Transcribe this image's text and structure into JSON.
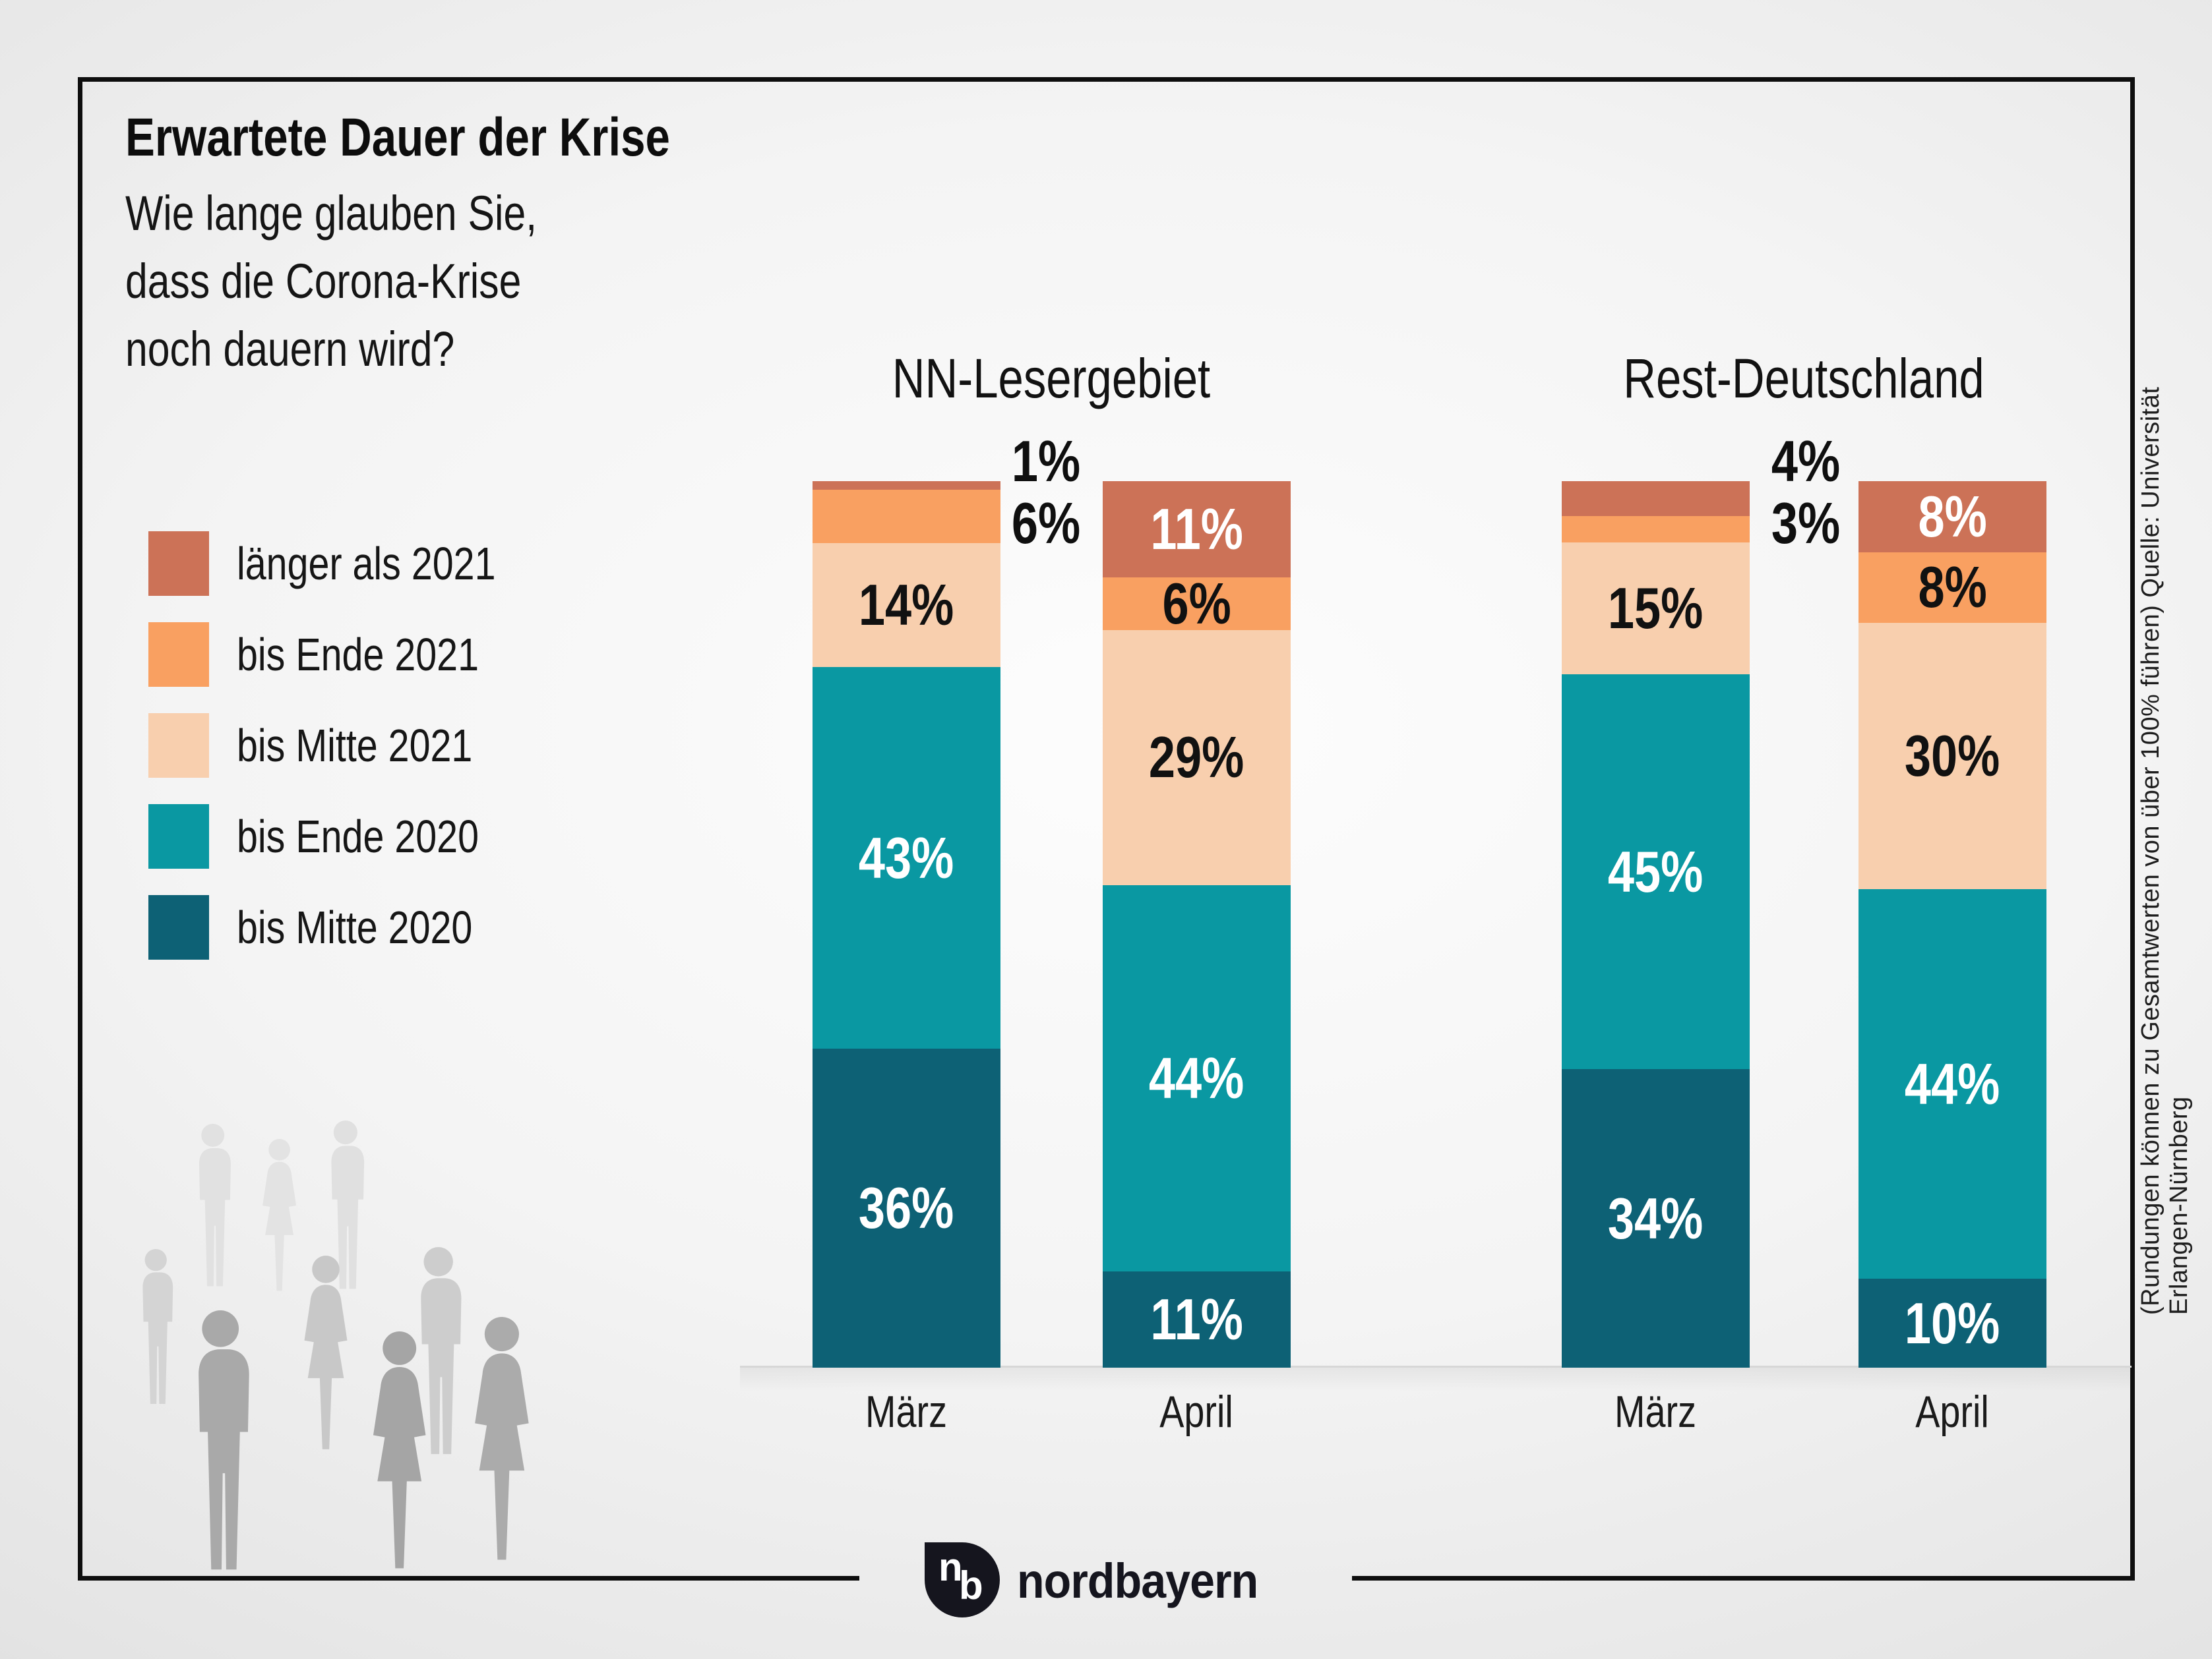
{
  "title": "Erwartete Dauer der Krise",
  "subtitle_lines": [
    "Wie lange glauben Sie,",
    "dass die Corona-Krise",
    "noch dauern wird?"
  ],
  "legend": {
    "items": [
      {
        "label": "länger als 2021"
      },
      {
        "label": "bis Ende 2021"
      },
      {
        "label": "bis Mitte 2021"
      },
      {
        "label": "bis Ende 2020"
      },
      {
        "label": "bis Mitte 2020"
      }
    ]
  },
  "chart_data": {
    "type": "bar",
    "stacked": true,
    "unit": "%",
    "ylim": [
      0,
      100
    ],
    "legend_position": "left",
    "categories_top_to_bottom": [
      "länger als 2021",
      "bis Ende 2021",
      "bis Mitte 2021",
      "bis Ende 2020",
      "bis Mitte 2020"
    ],
    "colors": [
      "#cc7257",
      "#f9a061",
      "#f8cfae",
      "#0a98a2",
      "#0d6175"
    ],
    "groups": [
      {
        "name": "NN-Lesergebiet",
        "bars": [
          {
            "month": "März",
            "segments": [
              {
                "category": "länger als 2021",
                "value": 1,
                "label": "1%",
                "label_pos": "out",
                "label_color": "#111111"
              },
              {
                "category": "bis Ende 2021",
                "value": 6,
                "label": "6%",
                "label_pos": "out",
                "label_color": "#111111"
              },
              {
                "category": "bis Mitte 2021",
                "value": 14,
                "label": "14%",
                "label_pos": "in",
                "label_color": "#111111"
              },
              {
                "category": "bis Ende 2020",
                "value": 43,
                "label": "43%",
                "label_pos": "in",
                "label_color": "#ffffff"
              },
              {
                "category": "bis Mitte 2020",
                "value": 36,
                "label": "36%",
                "label_pos": "in",
                "label_color": "#ffffff"
              }
            ]
          },
          {
            "month": "April",
            "segments": [
              {
                "category": "länger als 2021",
                "value": 11,
                "label": "11%",
                "label_pos": "in",
                "label_color": "#ffffff"
              },
              {
                "category": "bis Ende 2021",
                "value": 6,
                "label": "6%",
                "label_pos": "in",
                "label_color": "#111111"
              },
              {
                "category": "bis Mitte 2021",
                "value": 29,
                "label": "29%",
                "label_pos": "in",
                "label_color": "#111111"
              },
              {
                "category": "bis Ende 2020",
                "value": 44,
                "label": "44%",
                "label_pos": "in",
                "label_color": "#ffffff"
              },
              {
                "category": "bis Mitte 2020",
                "value": 11,
                "label": "11%",
                "label_pos": "in",
                "label_color": "#ffffff"
              }
            ]
          }
        ]
      },
      {
        "name": "Rest-Deutschland",
        "bars": [
          {
            "month": "März",
            "segments": [
              {
                "category": "länger als 2021",
                "value": 4,
                "label": "4%",
                "label_pos": "out",
                "label_color": "#111111"
              },
              {
                "category": "bis Ende 2021",
                "value": 3,
                "label": "3%",
                "label_pos": "out",
                "label_color": "#111111"
              },
              {
                "category": "bis Mitte 2021",
                "value": 15,
                "label": "15%",
                "label_pos": "in",
                "label_color": "#111111"
              },
              {
                "category": "bis Ende 2020",
                "value": 45,
                "label": "45%",
                "label_pos": "in",
                "label_color": "#ffffff"
              },
              {
                "category": "bis Mitte 2020",
                "value": 34,
                "label": "34%",
                "label_pos": "in",
                "label_color": "#ffffff"
              }
            ]
          },
          {
            "month": "April",
            "segments": [
              {
                "category": "länger als 2021",
                "value": 8,
                "label": "8%",
                "label_pos": "in",
                "label_color": "#ffffff"
              },
              {
                "category": "bis Ende 2021",
                "value": 8,
                "label": "8%",
                "label_pos": "in",
                "label_color": "#111111"
              },
              {
                "category": "bis Mitte 2021",
                "value": 30,
                "label": "30%",
                "label_pos": "in",
                "label_color": "#111111"
              },
              {
                "category": "bis Ende 2020",
                "value": 44,
                "label": "44%",
                "label_pos": "in",
                "label_color": "#ffffff"
              },
              {
                "category": "bis Mitte 2020",
                "value": 10,
                "label": "10%",
                "label_pos": "in",
                "label_color": "#ffffff"
              }
            ]
          }
        ]
      }
    ]
  },
  "footnote_vertical": "(Rundungen können zu Gesamtwerten von über 100% führen) Quelle: Universität Erlangen-Nürnberg",
  "logo": {
    "monogram_n": "n",
    "monogram_b": "b",
    "wordmark": "nordbayern"
  }
}
